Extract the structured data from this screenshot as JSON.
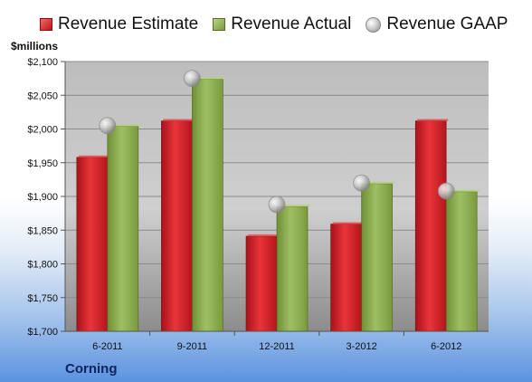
{
  "legend": {
    "estimate_label": "Revenue Estimate",
    "actual_label": "Revenue Actual",
    "gaap_label": "Revenue GAAP"
  },
  "units_label": "$millions",
  "company_label": "Corning",
  "colors": {
    "estimate": "#d11f26",
    "actual": "#8fae4f",
    "gaap": "#bdbdbd"
  },
  "chart_data": {
    "type": "bar",
    "categories": [
      "6-2011",
      "9-2011",
      "12-2011",
      "3-2012",
      "6-2012"
    ],
    "series": [
      {
        "name": "Revenue Estimate",
        "values": [
          1958,
          2012,
          1841,
          1859,
          2012
        ]
      },
      {
        "name": "Revenue Actual",
        "values": [
          2004,
          2074,
          1885,
          1919,
          1907
        ]
      },
      {
        "name": "Revenue GAAP",
        "values": [
          2005,
          2075,
          1888,
          1920,
          1908
        ],
        "style": "marker"
      }
    ],
    "ylabel": "$millions",
    "ylim": [
      1700,
      2100
    ],
    "yticks": [
      "$1,700",
      "$1,750",
      "$1,800",
      "$1,850",
      "$1,900",
      "$1,950",
      "$2,000",
      "$2,050",
      "$2,100"
    ],
    "grid": true,
    "legend_position": "top"
  }
}
